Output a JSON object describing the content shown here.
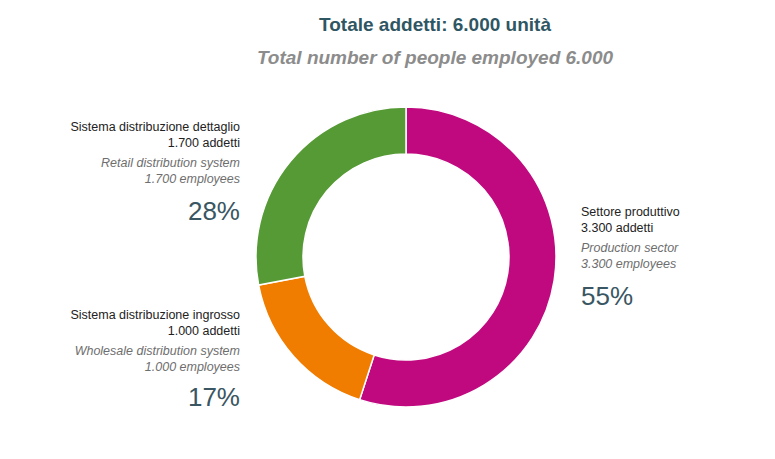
{
  "chart_data": {
    "type": "donut",
    "title": "Totale addetti: 6.000 unità",
    "subtitle": "Total number of people employed 6.000",
    "categories": [
      "Settore produttivo",
      "Sistema distribuzione ingrosso",
      "Sistema distribuzione dettaglio"
    ],
    "categories_en": [
      "Production sector",
      "Wholesale distribution system",
      "Retail distribution system"
    ],
    "values": [
      55,
      17,
      28
    ],
    "value_labels": [
      "55%",
      "17%",
      "28%"
    ],
    "employees": [
      3300,
      1000,
      1700
    ],
    "employees_labels": [
      "3.300 addetti",
      "1.000 addetti",
      "1.700 addetti"
    ],
    "employees_labels_en": [
      "3.300 employees",
      "1.000 employees",
      "1.700 employees"
    ],
    "colors": [
      "#c0087f",
      "#f07c00",
      "#559a35"
    ],
    "data_labels": true
  }
}
